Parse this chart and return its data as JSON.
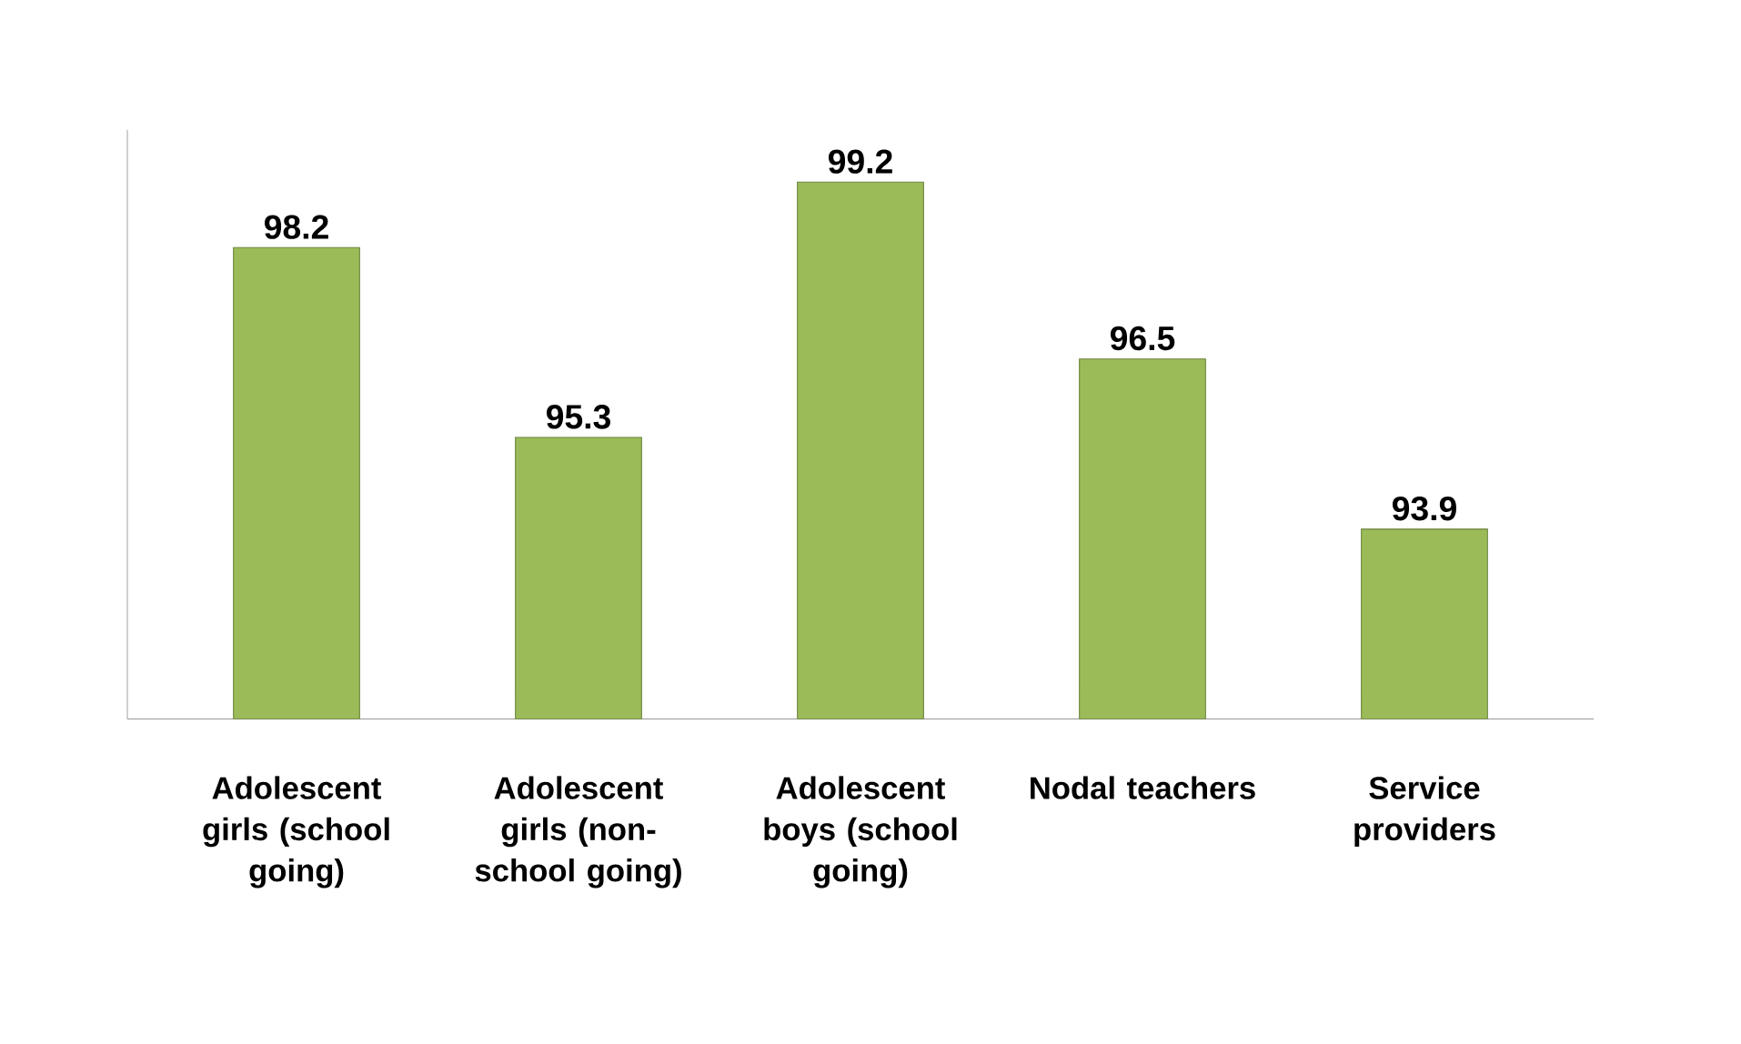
{
  "chart_data": {
    "type": "bar",
    "categories": [
      "Adolescent girls (school going)",
      "Adolescent girls (non-school going)",
      "Adolescent boys (school going)",
      "Nodal teachers",
      "Service providers"
    ],
    "values": [
      98.2,
      95.3,
      99.2,
      96.5,
      93.9
    ],
    "color": "#9bbb59",
    "ylim": [
      91,
      100
    ],
    "data_labels": true,
    "tick_labels": "x"
  }
}
